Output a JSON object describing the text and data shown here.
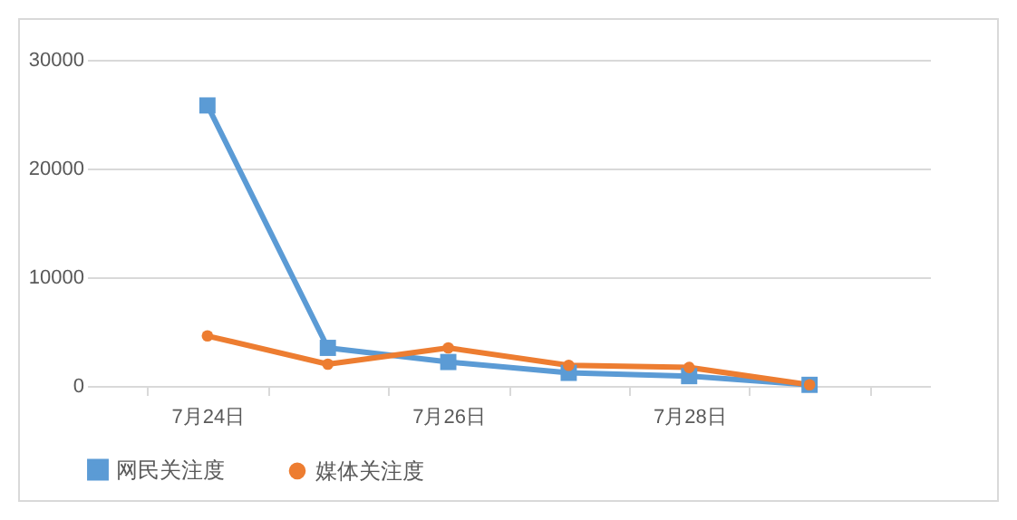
{
  "chart_data": {
    "type": "line",
    "categories": [
      "7月24日",
      null,
      "7月26日",
      null,
      "7月28日",
      null
    ],
    "series": [
      {
        "name": "网民关注度",
        "color": "#5b9bd5",
        "marker": "square",
        "values": [
          25800,
          3500,
          2200,
          1200,
          900,
          100
        ]
      },
      {
        "name": "媒体关注度",
        "color": "#ed7d31",
        "marker": "circle",
        "values": [
          4600,
          2000,
          3500,
          1900,
          1700,
          100
        ]
      }
    ],
    "ylim": [
      0,
      30000
    ],
    "yticks": [
      0,
      10000,
      20000,
      30000
    ],
    "grid": "y",
    "legend": "bottom",
    "line_style": "solid"
  }
}
